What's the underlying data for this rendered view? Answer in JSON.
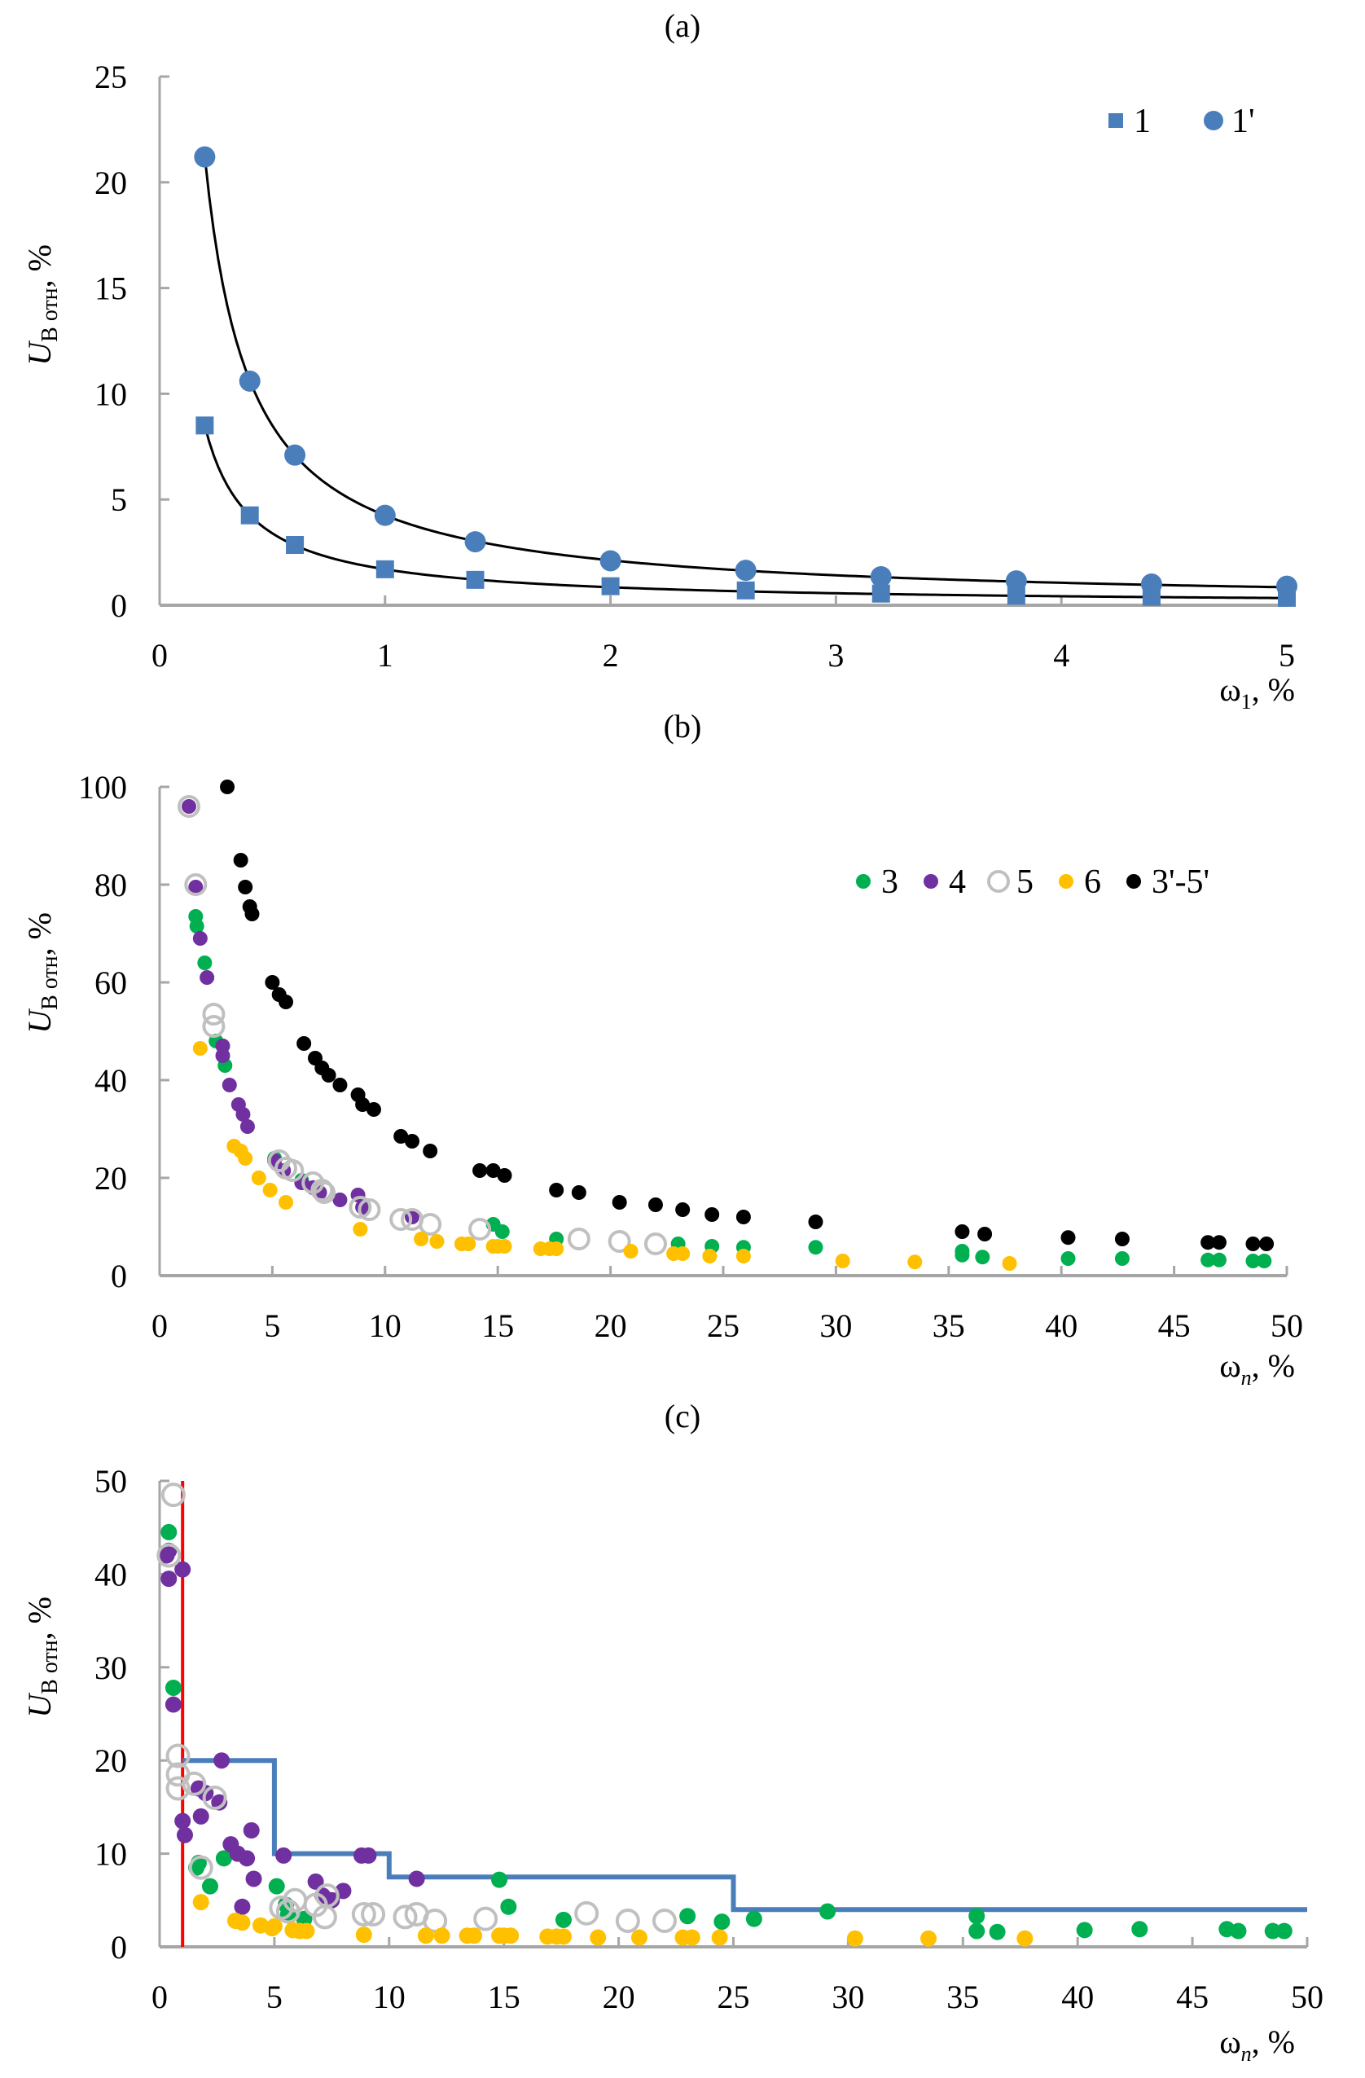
{
  "chart_data": [
    {
      "id": "a",
      "type": "scatter",
      "title": "(a)",
      "xlabel": "ω1, %",
      "ylabel": "UB отн, %",
      "xlim": [
        0,
        5
      ],
      "ylim": [
        0,
        25
      ],
      "xticks": [
        0,
        1,
        2,
        3,
        4,
        5
      ],
      "yticks": [
        0,
        5,
        10,
        15,
        20,
        25
      ],
      "grid": false,
      "legend_position": "top-right",
      "series": [
        {
          "name": "1",
          "marker": "square",
          "color": "#4a7ebb",
          "x": [
            0.2,
            0.4,
            0.6,
            1.0,
            1.4,
            2.0,
            2.6,
            3.2,
            3.8,
            4.4,
            5.0
          ],
          "y": [
            8.5,
            4.25,
            2.85,
            1.7,
            1.2,
            0.9,
            0.7,
            0.55,
            0.45,
            0.4,
            0.35
          ],
          "trendline": {
            "type": "power",
            "a": 1.7,
            "b": -1.0
          }
        },
        {
          "name": "1'",
          "marker": "circle",
          "color": "#4a7ebb",
          "x": [
            0.2,
            0.4,
            0.6,
            1.0,
            1.4,
            2.0,
            2.6,
            3.2,
            3.8,
            4.4,
            5.0
          ],
          "y": [
            21.2,
            10.6,
            7.1,
            4.25,
            3.0,
            2.1,
            1.65,
            1.35,
            1.15,
            1.0,
            0.9
          ],
          "trendline": {
            "type": "power",
            "a": 4.25,
            "b": -1.0
          }
        }
      ]
    },
    {
      "id": "b",
      "type": "scatter",
      "title": "(b)",
      "xlabel": "ωn, %",
      "ylabel": "UB отн, %",
      "xlim": [
        0,
        50
      ],
      "ylim": [
        0,
        100
      ],
      "xticks": [
        0,
        5,
        10,
        15,
        20,
        25,
        30,
        35,
        40,
        45,
        50
      ],
      "yticks": [
        0,
        20,
        40,
        60,
        80,
        100
      ],
      "grid": false,
      "legend_position": "top-right",
      "series": [
        {
          "name": "3",
          "marker": "dot",
          "color": "#00b050",
          "x": [
            1.6,
            1.65,
            2.0,
            2.5,
            2.9,
            5.1,
            6.3,
            14.8,
            15.2,
            17.6,
            23.0,
            24.5,
            25.9,
            29.1,
            35.6,
            35.6,
            36.5,
            40.3,
            42.7,
            46.5,
            47.0,
            48.5,
            49.0
          ],
          "y": [
            73.5,
            71.5,
            64.0,
            48.0,
            43.0,
            24.0,
            19.5,
            10.5,
            9.0,
            7.5,
            6.5,
            6.0,
            5.8,
            5.8,
            5.0,
            4.2,
            3.8,
            3.5,
            3.5,
            3.2,
            3.2,
            3.0,
            3.0
          ]
        },
        {
          "name": "4",
          "marker": "dot",
          "color": "#7030a0",
          "x": [
            1.3,
            1.6,
            1.8,
            2.1,
            2.8,
            2.8,
            3.1,
            3.5,
            3.7,
            3.9,
            5.1,
            5.5,
            6.3,
            6.8,
            7.1,
            8.0,
            8.8,
            9.0,
            11.2
          ],
          "y": [
            96.0,
            79.5,
            69.0,
            61.0,
            47.0,
            45.0,
            39.0,
            35.0,
            33.0,
            30.5,
            23.5,
            21.5,
            19.0,
            18.0,
            17.0,
            15.5,
            16.5,
            14.0,
            12.0
          ]
        },
        {
          "name": "5",
          "marker": "ring",
          "color": "#c0c0c0",
          "x": [
            1.3,
            1.6,
            2.4,
            2.4,
            5.3,
            5.6,
            5.9,
            6.8,
            7.2,
            7.3,
            8.9,
            9.3,
            10.7,
            11.2,
            12.0,
            14.2,
            18.6,
            20.4,
            22.0
          ],
          "y": [
            96.0,
            80.0,
            53.5,
            51.0,
            23.5,
            22.0,
            21.5,
            19.0,
            17.5,
            17.0,
            14.0,
            13.5,
            11.5,
            11.5,
            10.5,
            9.5,
            7.5,
            7.0,
            6.5
          ]
        },
        {
          "name": "6",
          "marker": "dot",
          "color": "#ffc000",
          "x": [
            1.8,
            3.3,
            3.6,
            3.8,
            4.4,
            4.9,
            5.6,
            8.9,
            11.6,
            12.3,
            13.4,
            13.7,
            14.8,
            15.0,
            15.3,
            16.9,
            17.3,
            17.6,
            20.9,
            24.4,
            25.9,
            30.3,
            33.5,
            37.7,
            22.8,
            23.2
          ],
          "y": [
            46.5,
            26.5,
            25.5,
            24.0,
            20.0,
            17.5,
            15.0,
            9.5,
            7.5,
            7.0,
            6.5,
            6.5,
            6.0,
            6.0,
            6.0,
            5.5,
            5.5,
            5.5,
            5.0,
            4.0,
            4.0,
            3.0,
            2.8,
            2.5,
            4.5,
            4.5
          ]
        },
        {
          "name": "3'-5'",
          "marker": "dot",
          "color": "#000000",
          "x": [
            3.0,
            3.6,
            3.8,
            4.0,
            4.1,
            5.0,
            5.3,
            5.6,
            6.4,
            6.9,
            7.2,
            7.5,
            8.0,
            8.8,
            9.0,
            9.5,
            10.7,
            11.2,
            12.0,
            14.2,
            14.8,
            15.3,
            17.6,
            18.6,
            20.4,
            22.0,
            23.2,
            24.5,
            25.9,
            29.1,
            35.6,
            36.6,
            40.3,
            42.7,
            46.5,
            47.0,
            48.5,
            49.1
          ],
          "y": [
            100.0,
            85.0,
            79.5,
            75.5,
            74.0,
            60.0,
            57.5,
            56.0,
            47.5,
            44.5,
            42.5,
            41.0,
            39.0,
            37.0,
            35.0,
            34.0,
            28.5,
            27.5,
            25.5,
            21.5,
            21.5,
            20.5,
            17.5,
            17.0,
            15.0,
            14.5,
            13.5,
            12.5,
            12.0,
            11.0,
            9.0,
            8.5,
            7.8,
            7.5,
            6.8,
            6.8,
            6.5,
            6.5
          ]
        }
      ]
    },
    {
      "id": "c",
      "type": "scatter",
      "title": "(c)",
      "xlabel": "ωn, %",
      "ylabel": "UB отн, %",
      "xlim": [
        0,
        50
      ],
      "ylim": [
        0,
        50
      ],
      "xticks": [
        0,
        5,
        10,
        15,
        20,
        25,
        30,
        35,
        40,
        45,
        50
      ],
      "yticks": [
        0,
        10,
        20,
        30,
        40,
        50
      ],
      "grid": false,
      "legend_position": "none",
      "lines": [
        {
          "name": "red-limit",
          "color": "#ff0000",
          "x": [
            1.0,
            1.0
          ],
          "y": [
            0,
            50
          ]
        },
        {
          "name": "blue-threshold-step",
          "color": "#4a7ebb",
          "x": [
            1.0,
            5.0,
            5.0,
            10.0,
            10.0,
            25.0,
            25.0,
            50.0
          ],
          "y": [
            20.0,
            20.0,
            10.0,
            10.0,
            7.5,
            7.5,
            4.0,
            4.0
          ]
        }
      ],
      "series": [
        {
          "name": "3",
          "marker": "dot",
          "color": "#00b050",
          "x": [
            0.4,
            0.6,
            1.6,
            1.7,
            2.2,
            2.8,
            5.1,
            5.5,
            5.6,
            6.3,
            14.8,
            15.2,
            17.6,
            23.0,
            24.5,
            25.9,
            29.1,
            35.6,
            35.6,
            36.5,
            40.3,
            42.7,
            46.5,
            47.0,
            48.5,
            49.0
          ],
          "y": [
            44.5,
            27.8,
            8.5,
            9.0,
            6.5,
            9.5,
            6.5,
            4.5,
            3.5,
            3.0,
            7.2,
            4.3,
            2.9,
            3.3,
            2.7,
            3.0,
            3.8,
            3.3,
            1.7,
            1.6,
            1.8,
            1.9,
            1.9,
            1.7,
            1.7,
            1.7
          ]
        },
        {
          "name": "4",
          "marker": "dot",
          "color": "#7030a0",
          "x": [
            0.3,
            0.4,
            0.4,
            0.6,
            1.0,
            1.0,
            1.1,
            1.7,
            2.0,
            2.6,
            2.7,
            1.8,
            3.1,
            3.4,
            3.8,
            4.0,
            4.1,
            3.6,
            5.4,
            6.8,
            7.1,
            7.5,
            8.0,
            8.8,
            9.1,
            11.2
          ],
          "y": [
            42.0,
            42.5,
            39.5,
            26.0,
            40.5,
            13.5,
            12.0,
            17.0,
            16.5,
            15.5,
            20.0,
            14.0,
            11.0,
            10.0,
            9.5,
            12.5,
            7.3,
            4.3,
            9.8,
            7.0,
            5.5,
            5.0,
            6.0,
            9.8,
            9.8,
            7.3
          ]
        },
        {
          "name": "5",
          "marker": "ring",
          "color": "#c0c0c0",
          "x": [
            0.6,
            0.4,
            0.8,
            0.8,
            1.5,
            0.8,
            2.4,
            1.8,
            5.3,
            5.6,
            5.9,
            6.8,
            7.2,
            7.3,
            8.9,
            9.3,
            10.7,
            11.2,
            12.0,
            14.2,
            18.6,
            20.4,
            22.0
          ],
          "y": [
            48.5,
            42.0,
            20.5,
            18.5,
            17.5,
            17.0,
            16.0,
            8.5,
            4.2,
            3.8,
            5.0,
            4.5,
            3.2,
            5.5,
            3.5,
            3.5,
            3.2,
            3.5,
            2.8,
            3.0,
            3.6,
            2.8,
            2.8
          ]
        },
        {
          "name": "6",
          "marker": "dot",
          "color": "#ffc000",
          "x": [
            1.8,
            3.3,
            3.6,
            4.4,
            4.9,
            5.0,
            5.8,
            6.1,
            6.4,
            8.9,
            11.6,
            12.3,
            13.4,
            13.7,
            14.8,
            15.0,
            15.3,
            16.9,
            17.3,
            17.6,
            19.1,
            20.9,
            22.8,
            23.2,
            24.4,
            30.3,
            33.5,
            37.7
          ],
          "y": [
            4.8,
            2.8,
            2.6,
            2.3,
            2.0,
            2.2,
            1.8,
            1.7,
            1.7,
            1.3,
            1.2,
            1.2,
            1.2,
            1.2,
            1.2,
            1.2,
            1.2,
            1.1,
            1.1,
            1.1,
            1.0,
            1.0,
            1.0,
            1.0,
            1.0,
            0.9,
            0.9,
            0.9
          ]
        }
      ]
    }
  ],
  "panels": {
    "a": {
      "label": "(a)",
      "ylabel_main": "U",
      "ylabel_sub": "B отн",
      "ylabel_tail": ", %",
      "xlabel_main": "ω",
      "xlabel_sub": "1",
      "xlabel_tail": ", %"
    },
    "b": {
      "label": "(b)",
      "ylabel_main": "U",
      "ylabel_sub": "B отн",
      "ylabel_tail": ", %",
      "xlabel_main": "ω",
      "xlabel_sub": "n",
      "xlabel_tail": ", %"
    },
    "c": {
      "label": "(c)",
      "ylabel_main": "U",
      "ylabel_sub": "B отн",
      "ylabel_tail": ", %",
      "xlabel_main": "ω",
      "xlabel_sub": "n",
      "xlabel_tail": ", %"
    }
  }
}
